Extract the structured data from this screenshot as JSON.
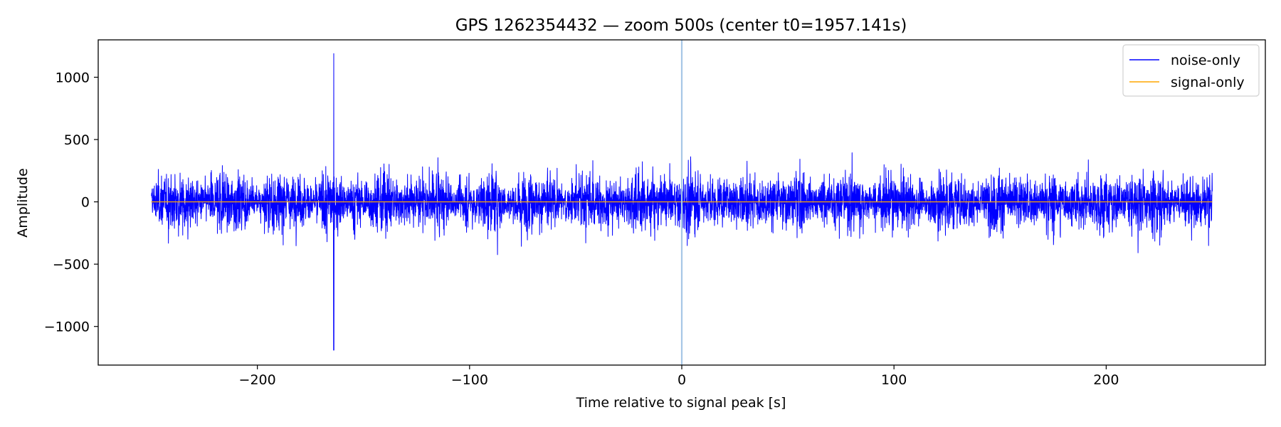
{
  "chart_data": {
    "type": "line",
    "title": "GPS 1262354432 — zoom 500s (center t0=1957.141s)",
    "xlabel": "Time relative to signal peak [s]",
    "ylabel": "Amplitude",
    "xlim": [
      -275,
      275
    ],
    "ylim": [
      -1310,
      1300
    ],
    "x_ticks": [
      -200,
      -100,
      0,
      100,
      200
    ],
    "x_tick_labels": [
      "−200",
      "−100",
      "0",
      "100",
      "200"
    ],
    "y_ticks": [
      1000,
      500,
      0,
      -500,
      -1000
    ],
    "y_tick_labels": [
      "1000",
      "500",
      "0",
      "−500",
      "−1000"
    ],
    "grid": false,
    "legend_position": "top-right",
    "vertical_marker": {
      "x": 0,
      "color": "#a7c7e7"
    },
    "series": [
      {
        "name": "noise-only",
        "color": "#0000ff",
        "x_range": [
          -250,
          250
        ],
        "typical_envelope": 400,
        "max_peak": 1190,
        "min_peak": -1190,
        "max_peak_x": -164
      },
      {
        "name": "signal-only",
        "color": "#ffa500",
        "x_range": [
          -250,
          250
        ],
        "values": [
          0,
          0
        ]
      }
    ]
  }
}
